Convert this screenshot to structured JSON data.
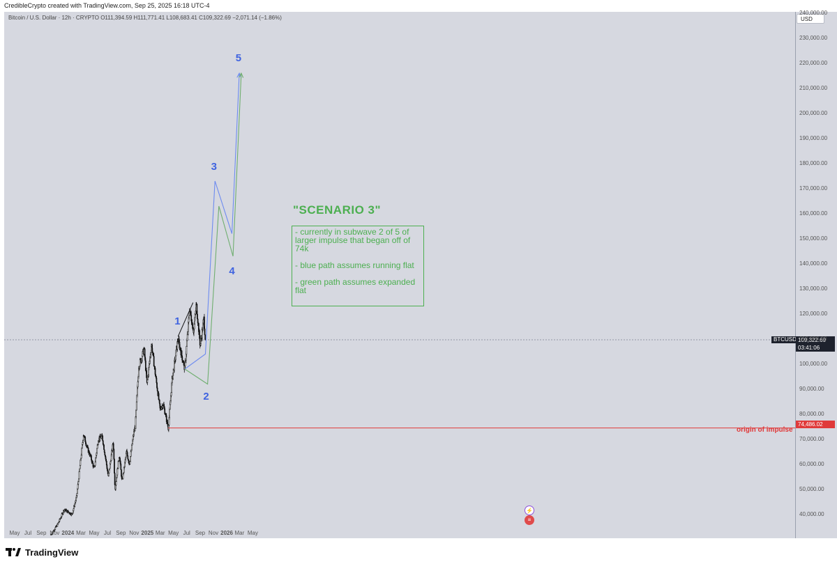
{
  "header": {
    "credit": "CredibleCrypto created with TradingView.com, Sep 25, 2025 16:18 UTC-4",
    "currency_button": "USD"
  },
  "legend": {
    "symbol": "Bitcoin / U.S. Dollar · 12h · CRYPTO",
    "open": "O111,394.59",
    "high": "H111,771.41",
    "low": "L108,683.41",
    "close": "C109,322.69",
    "change": "−2,071.14 (−1.86%)"
  },
  "annotations": {
    "scenario_title": "\"SCENARIO 3\"",
    "notes": [
      "- currently in subwave 2 of 5 of larger impulse that began off of 74k",
      "- blue path assumes running flat",
      "- green path assumes expanded flat"
    ],
    "origin_label": "origin of impulse",
    "waves": [
      "1",
      "2",
      "3",
      "4",
      "5"
    ]
  },
  "price_labels": {
    "symbol_badge": "BTCUSD",
    "last_price": "109,322.69",
    "countdown": "03:41:06",
    "origin_price": "74,486.02"
  },
  "footer": {
    "brand": "TradingView"
  },
  "colors": {
    "background": "#d6d8e0",
    "candles": "#111111",
    "blue_path": "#6d8bf0",
    "green_path": "#6fae6f",
    "label_blue": "#3f63e0",
    "scenario_green": "#4caf50",
    "origin_red": "#e03a3a"
  },
  "chart_data": {
    "type": "line",
    "series_type": "candlestick",
    "title": "Bitcoin / U.S. Dollar · 12h · CRYPTO",
    "y_axis": {
      "ticks": [
        "40,000.00",
        "50,000.00",
        "60,000.00",
        "70,000.00",
        "80,000.00",
        "90,000.00",
        "100,000.00",
        "110,000.00",
        "120,000.00",
        "130,000.00",
        "140,000.00",
        "150,000.00",
        "160,000.00",
        "170,000.00",
        "180,000.00",
        "190,000.00",
        "200,000.00",
        "210,000.00",
        "220,000.00",
        "230,000.00",
        "240,000.00"
      ],
      "tick_values": [
        40000,
        50000,
        60000,
        70000,
        80000,
        90000,
        100000,
        110000,
        120000,
        130000,
        140000,
        150000,
        160000,
        170000,
        180000,
        190000,
        200000,
        210000,
        220000,
        230000,
        240000
      ],
      "range": [
        30500,
        240500
      ],
      "scale": "linear"
    },
    "x_axis": {
      "ticks": [
        "May",
        "Jul",
        "Sep",
        "Nov",
        "2024",
        "Mar",
        "May",
        "Jul",
        "Sep",
        "Nov",
        "2025",
        "Mar",
        "May",
        "Jul",
        "Sep",
        "Nov",
        "2026",
        "Mar",
        "May"
      ],
      "tick_dates": [
        "2023-05-01",
        "2023-07-01",
        "2023-09-01",
        "2023-11-01",
        "2024-01-01",
        "2024-03-01",
        "2024-05-01",
        "2024-07-01",
        "2024-09-01",
        "2024-11-01",
        "2025-01-01",
        "2025-03-01",
        "2025-05-01",
        "2025-07-01",
        "2025-09-01",
        "2025-11-01",
        "2026-01-01",
        "2026-03-01",
        "2026-05-01"
      ]
    },
    "price_path": [
      [
        "2023-10-15",
        32000
      ],
      [
        "2023-11-15",
        36000
      ],
      [
        "2023-12-15",
        42000
      ],
      [
        "2024-01-20",
        40000
      ],
      [
        "2024-02-10",
        47000
      ],
      [
        "2024-03-13",
        72000
      ],
      [
        "2024-04-01",
        66000
      ],
      [
        "2024-04-15",
        63000
      ],
      [
        "2024-05-01",
        58000
      ],
      [
        "2024-05-20",
        70000
      ],
      [
        "2024-06-07",
        71000
      ],
      [
        "2024-06-25",
        61000
      ],
      [
        "2024-07-05",
        55000
      ],
      [
        "2024-07-28",
        69000
      ],
      [
        "2024-08-05",
        50000
      ],
      [
        "2024-08-25",
        64000
      ],
      [
        "2024-09-06",
        53000
      ],
      [
        "2024-09-27",
        65000
      ],
      [
        "2024-10-10",
        60000
      ],
      [
        "2024-10-29",
        72000
      ],
      [
        "2024-11-06",
        75000
      ],
      [
        "2024-11-22",
        99000
      ],
      [
        "2024-12-17",
        106000
      ],
      [
        "2024-12-30",
        92000
      ],
      [
        "2025-01-20",
        108000
      ],
      [
        "2025-02-05",
        97000
      ],
      [
        "2025-02-28",
        82000
      ],
      [
        "2025-03-15",
        84000
      ],
      [
        "2025-04-07",
        74486
      ],
      [
        "2025-04-25",
        94000
      ],
      [
        "2025-05-22",
        110000
      ],
      [
        "2025-06-22",
        98000
      ],
      [
        "2025-07-14",
        122000
      ],
      [
        "2025-08-02",
        113000
      ],
      [
        "2025-08-14",
        124000
      ],
      [
        "2025-09-01",
        107500
      ],
      [
        "2025-09-18",
        118000
      ],
      [
        "2025-09-25",
        109322.69
      ]
    ],
    "last_price": 109322.69,
    "projections": {
      "blue_path": {
        "name": "blue path assumes running flat",
        "points": [
          [
            "2025-06-22",
            98000
          ],
          [
            "2025-09-25",
            104000
          ],
          [
            "2025-11-08",
            173000
          ],
          [
            "2026-01-25",
            152000
          ],
          [
            "2026-02-28",
            216000
          ]
        ]
      },
      "green_path": {
        "name": "green path assumes expanded flat",
        "points": [
          [
            "2025-06-22",
            98000
          ],
          [
            "2025-10-05",
            92000
          ],
          [
            "2025-11-26",
            163000
          ],
          [
            "2026-01-30",
            143000
          ],
          [
            "2026-03-09",
            216000
          ]
        ]
      },
      "trendline": {
        "points": [
          [
            "2025-05-22",
            111000
          ],
          [
            "2025-07-30",
            124500
          ]
        ]
      },
      "origin_line": {
        "price": 74486.02,
        "from": "2025-04-07",
        "label": "origin of impulse"
      }
    },
    "wave_labels": [
      {
        "label": "1",
        "date": "2025-05-22",
        "price": 117000
      },
      {
        "label": "2",
        "date": "2025-10-01",
        "price": 87000
      },
      {
        "label": "3",
        "date": "2025-11-06",
        "price": 178500
      },
      {
        "label": "4",
        "date": "2026-01-28",
        "price": 137000
      },
      {
        "label": "5",
        "date": "2026-02-27",
        "price": 222000
      }
    ]
  }
}
